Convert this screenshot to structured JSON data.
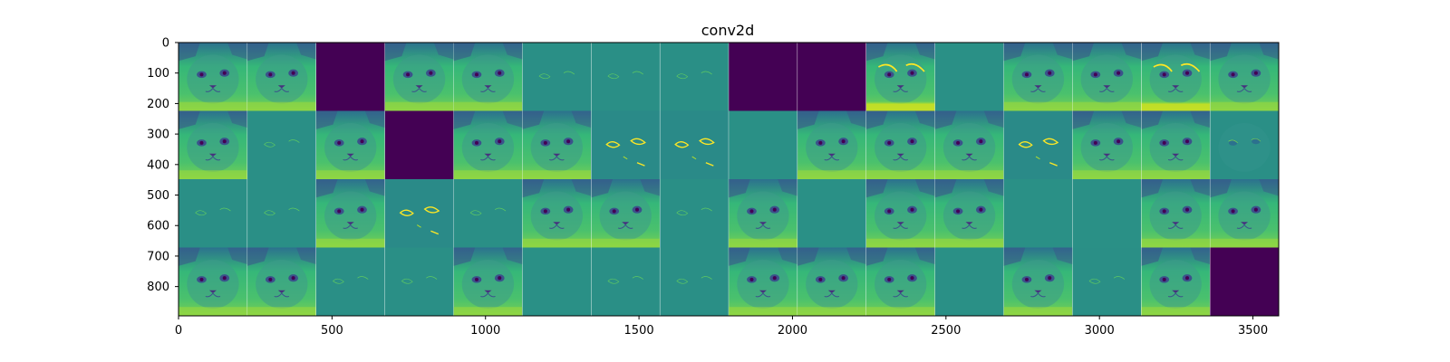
{
  "chart_data": {
    "type": "heatmap",
    "title": "conv2d",
    "xlabel": "",
    "ylabel": "",
    "xlim": [
      0,
      3584
    ],
    "ylim": [
      896,
      0
    ],
    "x_ticks": [
      0,
      500,
      1000,
      1500,
      2000,
      2500,
      3000,
      3500
    ],
    "y_ticks": [
      0,
      100,
      200,
      300,
      400,
      500,
      600,
      700,
      800
    ],
    "colormap": "viridis",
    "grid": {
      "rows": 4,
      "cols": 16,
      "tile_size": 224
    },
    "tiles": [
      "cat",
      "cat",
      "dark",
      "cat",
      "cat",
      "edge",
      "edge",
      "edge",
      "dark",
      "dark",
      "cat-bright",
      "flat",
      "cat",
      "cat",
      "cat-bright",
      "cat",
      "cat",
      "edge",
      "cat",
      "dark",
      "cat",
      "cat",
      "edge-bright",
      "edge-bright",
      "flat",
      "cat",
      "cat",
      "cat",
      "edge-bright",
      "cat",
      "cat",
      "cat-faint",
      "edge",
      "edge",
      "cat",
      "edge-bright",
      "edge",
      "cat",
      "cat",
      "edge",
      "cat",
      "flat",
      "cat",
      "cat",
      "flat",
      "flat",
      "cat",
      "cat",
      "cat",
      "cat",
      "edge",
      "edge",
      "cat",
      "flat",
      "edge",
      "edge",
      "cat",
      "cat",
      "cat",
      "flat",
      "cat",
      "edge",
      "cat",
      "dark"
    ],
    "colors": {
      "dark": "#440154",
      "flat": "#2a9086",
      "cat_bg": "#35b779",
      "cat_mid": "#2f7f8e",
      "cat_dark": "#3b528b",
      "bright": "#fde725"
    }
  }
}
